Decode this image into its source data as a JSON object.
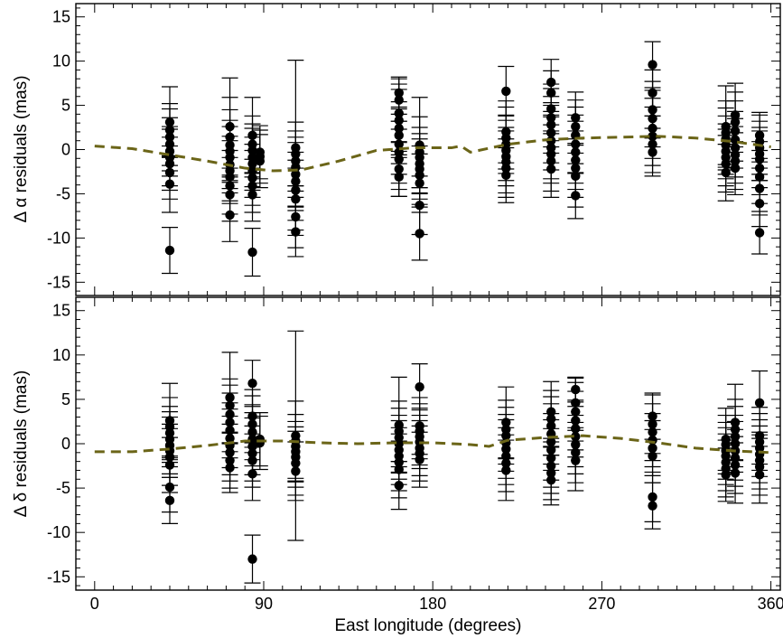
{
  "chart_data": [
    {
      "type": "scatter",
      "panel": "top",
      "ylabel": "Δ α residuals (mas)",
      "xlabel": "",
      "xlim": [
        -10,
        365
      ],
      "ylim": [
        -16.5,
        16.5
      ],
      "xticks": [
        0,
        90,
        180,
        270,
        360
      ],
      "yticks": [
        -15,
        -10,
        -5,
        0,
        5,
        10,
        15
      ],
      "grid": false,
      "dashed_color": "#6b6518",
      "dashed_curve": {
        "x": [
          0,
          20,
          40,
          60,
          80,
          95,
          110,
          130,
          150,
          170,
          190,
          195,
          200,
          220,
          240,
          260,
          280,
          300,
          320,
          340,
          360
        ],
        "y": [
          0.4,
          0.1,
          -0.6,
          -1.3,
          -2.1,
          -2.4,
          -2.3,
          -1.3,
          -0.1,
          0.2,
          0.2,
          0.4,
          -0.3,
          0.6,
          1.1,
          1.3,
          1.4,
          1.5,
          1.3,
          0.9,
          0.3
        ]
      },
      "groups": [
        {
          "x": 40,
          "y": [
            3.1,
            2.2,
            1.4,
            0.6,
            -0.2,
            -0.9,
            -1.6,
            -2.6,
            -3.9,
            -11.4
          ],
          "err": [
            4.0,
            3.0,
            3.2,
            3.0,
            2.8,
            3.2,
            3.0,
            3.0,
            3.2,
            2.6
          ]
        },
        {
          "x": 72,
          "y": [
            2.6,
            1.4,
            0.5,
            -0.2,
            -0.9,
            -1.7,
            -2.4,
            -3.1,
            -4.1,
            -5.1,
            -7.4
          ],
          "err": [
            5.5,
            4.5,
            4.0,
            3.5,
            3.5,
            3.2,
            3.4,
            3.0,
            3.2,
            3.0,
            3.0
          ]
        },
        {
          "x": 84,
          "y": [
            1.6,
            0.6,
            -0.1,
            -0.9,
            -1.6,
            -2.4,
            -3.2,
            -4.1,
            -5.1,
            -11.6
          ],
          "err": [
            4.3,
            3.2,
            3.0,
            3.3,
            3.0,
            3.0,
            3.1,
            3.0,
            3.0,
            2.7
          ]
        },
        {
          "x": 88,
          "y": [
            -0.3,
            -0.8,
            -1.3
          ],
          "err": [
            3.0,
            3.0,
            3.0
          ]
        },
        {
          "x": 107,
          "y": [
            0.2,
            -0.5,
            -1.3,
            -2.0,
            -2.8,
            -3.6,
            -4.6,
            -5.6,
            -7.6,
            -9.3
          ],
          "err": [
            9.9,
            3.6,
            3.4,
            3.4,
            3.6,
            3.3,
            3.4,
            3.5,
            3.5,
            2.8
          ]
        },
        {
          "x": 162,
          "y": [
            6.4,
            5.6,
            4.1,
            3.3,
            2.4,
            1.6,
            0.6,
            -0.3,
            -1.1,
            -2.2,
            -3.1
          ],
          "err": [
            1.8,
            2.4,
            3.3,
            3.5,
            3.0,
            3.2,
            3.4,
            3.5,
            3.4,
            3.1,
            2.2
          ]
        },
        {
          "x": 173,
          "y": [
            0.5,
            -0.3,
            -0.9,
            -1.6,
            -2.2,
            -2.9,
            -3.8,
            -6.3,
            -9.5
          ],
          "err": [
            5.4,
            4.0,
            3.4,
            3.4,
            3.4,
            3.3,
            3.3,
            3.3,
            3.0
          ]
        },
        {
          "x": 219,
          "y": [
            6.6,
            2.0,
            1.3,
            0.6,
            -0.1,
            -0.8,
            -1.4,
            -2.1,
            -2.9
          ],
          "err": [
            2.8,
            3.5,
            3.5,
            3.3,
            3.4,
            3.3,
            3.5,
            3.3,
            3.1
          ]
        },
        {
          "x": 243,
          "y": [
            7.6,
            6.4,
            4.6,
            3.6,
            2.8,
            1.9,
            1.0,
            0.2,
            -0.5,
            -1.3,
            -2.2
          ],
          "err": [
            2.6,
            2.5,
            2.8,
            3.3,
            3.2,
            3.4,
            3.3,
            3.5,
            3.3,
            3.4,
            3.2
          ]
        },
        {
          "x": 256,
          "y": [
            3.6,
            2.6,
            1.6,
            0.6,
            -0.3,
            -1.2,
            -2.1,
            -3.0,
            -5.2
          ],
          "err": [
            2.9,
            3.0,
            3.2,
            3.3,
            3.5,
            3.3,
            3.3,
            3.5,
            2.6
          ]
        },
        {
          "x": 297,
          "y": [
            9.6,
            6.4,
            4.5,
            3.5,
            2.4,
            1.5,
            0.6,
            -0.3
          ],
          "err": [
            2.6,
            2.6,
            3.2,
            3.2,
            3.4,
            3.3,
            3.2,
            2.7
          ]
        },
        {
          "x": 336,
          "y": [
            2.6,
            1.9,
            1.2,
            0.5,
            -0.2,
            -0.9,
            -1.6,
            -2.6
          ],
          "err": [
            4.6,
            3.6,
            3.5,
            3.3,
            3.1,
            3.2,
            3.2,
            3.2
          ]
        },
        {
          "x": 341,
          "y": [
            3.9,
            3.1,
            2.1,
            1.1,
            0.2,
            -0.6,
            -1.3,
            -2.1
          ],
          "err": [
            3.6,
            3.4,
            3.4,
            3.2,
            3.3,
            3.2,
            3.2,
            3.0
          ]
        },
        {
          "x": 354,
          "y": [
            1.6,
            0.9,
            0.2,
            -0.5,
            -1.1,
            -2.1,
            -3.1,
            -4.4,
            -6.1,
            -9.4
          ],
          "err": [
            2.6,
            3.0,
            3.0,
            3.0,
            3.2,
            3.0,
            3.0,
            3.0,
            2.6,
            2.4
          ]
        }
      ]
    },
    {
      "type": "scatter",
      "panel": "bottom",
      "ylabel": "Δ δ residuals (mas)",
      "xlabel": "East longitude (degrees)",
      "xlim": [
        -10,
        365
      ],
      "ylim": [
        -16.5,
        16.5
      ],
      "xticks": [
        0,
        90,
        180,
        270,
        360
      ],
      "yticks": [
        -15,
        -10,
        -5,
        0,
        5,
        10,
        15
      ],
      "grid": false,
      "dashed_color": "#6b6518",
      "dashed_curve": {
        "x": [
          0,
          20,
          40,
          60,
          80,
          100,
          120,
          140,
          160,
          180,
          200,
          210,
          220,
          240,
          260,
          280,
          300,
          320,
          340,
          360
        ],
        "y": [
          -0.9,
          -0.9,
          -0.6,
          -0.2,
          0.3,
          0.3,
          0.1,
          0.0,
          0.1,
          0.1,
          -0.1,
          -0.3,
          0.4,
          0.7,
          0.9,
          0.6,
          0.1,
          -0.5,
          -0.8,
          -1.0
        ]
      },
      "groups": [
        {
          "x": 40,
          "y": [
            2.6,
            1.9,
            1.2,
            0.5,
            -0.2,
            -0.8,
            -1.5,
            -2.4,
            -4.9,
            -6.4
          ],
          "err": [
            4.2,
            3.3,
            3.0,
            3.1,
            3.2,
            3.0,
            3.2,
            3.1,
            2.8,
            2.6
          ]
        },
        {
          "x": 72,
          "y": [
            5.2,
            4.3,
            3.3,
            2.4,
            1.5,
            0.6,
            -0.2,
            -1.0,
            -1.9,
            -2.7
          ],
          "err": [
            5.1,
            3.0,
            3.3,
            3.3,
            3.1,
            3.3,
            3.3,
            3.2,
            3.1,
            2.8
          ]
        },
        {
          "x": 84,
          "y": [
            6.8,
            3.1,
            2.2,
            1.3,
            0.5,
            -0.3,
            -1.1,
            -1.9,
            -3.4,
            -13.0
          ],
          "err": [
            2.6,
            3.0,
            3.2,
            3.1,
            3.0,
            3.2,
            3.1,
            3.0,
            3.0,
            2.7
          ]
        },
        {
          "x": 88,
          "y": [
            0.5,
            0.1
          ],
          "err": [
            3.0,
            3.0
          ]
        },
        {
          "x": 107,
          "y": [
            0.9,
            0.3,
            -0.3,
            -0.9,
            -1.5,
            -2.2,
            -3.1
          ],
          "err": [
            11.8,
            4.5,
            3.6,
            3.4,
            3.4,
            3.6,
            3.3
          ]
        },
        {
          "x": 162,
          "y": [
            2.1,
            1.4,
            0.7,
            0.0,
            -0.7,
            -1.4,
            -2.1,
            -2.9,
            -4.7
          ],
          "err": [
            5.4,
            3.4,
            3.3,
            3.2,
            3.3,
            3.2,
            3.2,
            3.2,
            2.7
          ]
        },
        {
          "x": 173,
          "y": [
            6.4,
            2.0,
            1.4,
            0.8,
            0.2,
            -0.5,
            -1.1,
            -1.8
          ],
          "err": [
            2.6,
            3.2,
            3.1,
            3.2,
            3.0,
            3.1,
            3.1,
            3.1
          ]
        },
        {
          "x": 219,
          "y": [
            2.4,
            1.6,
            0.9,
            0.1,
            -0.6,
            -1.4,
            -2.2,
            -3.0
          ],
          "err": [
            4.0,
            3.3,
            3.2,
            3.2,
            3.3,
            3.2,
            3.2,
            3.4
          ]
        },
        {
          "x": 243,
          "y": [
            3.6,
            2.8,
            2.0,
            1.1,
            0.2,
            -0.7,
            -1.6,
            -2.5,
            -3.3,
            -4.1
          ],
          "err": [
            3.4,
            3.2,
            3.3,
            3.4,
            3.2,
            3.4,
            3.3,
            3.1,
            3.0,
            2.8
          ]
        },
        {
          "x": 256,
          "y": [
            6.1,
            4.6,
            3.6,
            2.6,
            1.7,
            0.8,
            -0.1,
            -1.0,
            -1.9
          ],
          "err": [
            1.4,
            2.8,
            3.3,
            3.3,
            3.2,
            3.4,
            3.3,
            3.4,
            3.4
          ]
        },
        {
          "x": 297,
          "y": [
            3.1,
            2.2,
            1.3,
            0.4,
            -0.5,
            -1.4,
            -6.0,
            -7.0
          ],
          "err": [
            2.6,
            3.3,
            3.2,
            3.0,
            3.1,
            3.0,
            2.8,
            2.6
          ]
        },
        {
          "x": 336,
          "y": [
            0.5,
            -0.1,
            -0.8,
            -1.4,
            -2.1,
            -2.8,
            -3.5
          ],
          "err": [
            3.5,
            3.3,
            3.2,
            3.2,
            3.2,
            3.2,
            3.0
          ]
        },
        {
          "x": 341,
          "y": [
            2.4,
            1.6,
            0.8,
            0.0,
            -0.8,
            -1.6,
            -2.4,
            -3.3
          ],
          "err": [
            4.3,
            3.4,
            3.4,
            3.2,
            3.3,
            3.2,
            3.2,
            3.4
          ]
        },
        {
          "x": 354,
          "y": [
            4.6,
            0.9,
            0.2,
            -0.5,
            -1.2,
            -1.9,
            -2.6,
            -3.5
          ],
          "err": [
            3.6,
            3.2,
            3.2,
            3.2,
            3.2,
            3.2,
            3.2,
            3.2
          ]
        }
      ]
    }
  ]
}
